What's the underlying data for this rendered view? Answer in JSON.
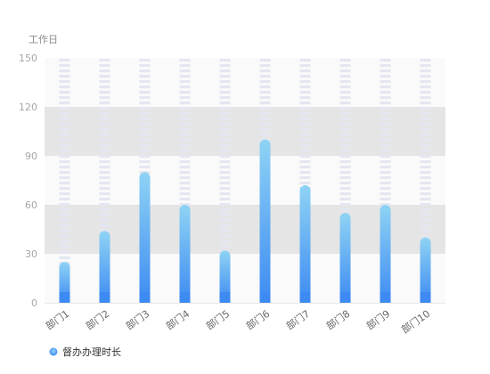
{
  "chart_data": {
    "type": "bar",
    "ylabel": "工作日",
    "ylim": [
      0,
      150
    ],
    "yticks": [
      0,
      30,
      60,
      90,
      120,
      150
    ],
    "categories": [
      "部门1",
      "部门2",
      "部门3",
      "部门4",
      "部门5",
      "部门6",
      "部门7",
      "部门8",
      "部门9",
      "部门10"
    ],
    "series": [
      {
        "name": "督办办理时长",
        "values": [
          25,
          44,
          80,
          60,
          32,
          100,
          72,
          55,
          60,
          40
        ]
      }
    ],
    "legend_position": "bottom-left",
    "colors": {
      "bar_top": "#8fd3f4",
      "bar_bottom": "#3d8bf2",
      "band_light": "#f5f5f5",
      "band_dark": "#e5e5e5",
      "bar_track": "#e4e6f1",
      "legend_marker": "#5aa9f5"
    }
  }
}
